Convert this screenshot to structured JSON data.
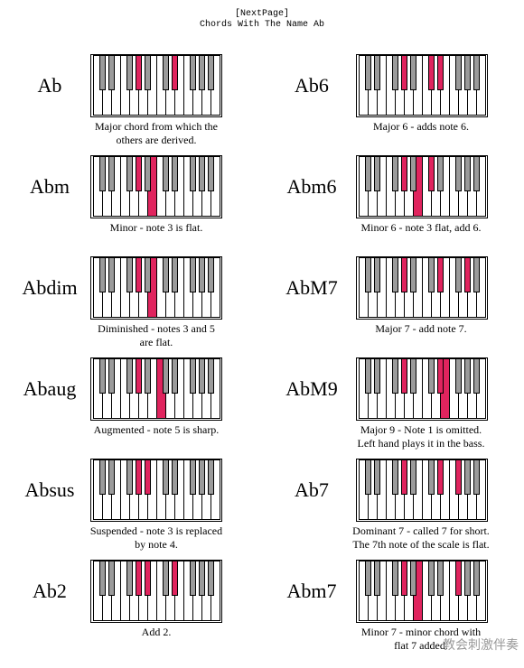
{
  "header": {
    "nextpage_label": "[NextPage]",
    "title": "Chords With The Name Ab"
  },
  "colors": {
    "highlight": "#e0245e",
    "black_key": "#9b9b9b",
    "white_key": "#ffffff",
    "outline": "#000000"
  },
  "keyboard": {
    "white_keys": 14,
    "black_keys_after_white_index": [
      0,
      1,
      3,
      4,
      5,
      7,
      8,
      10,
      11,
      12
    ]
  },
  "chords": [
    {
      "name": "Ab",
      "description": [
        "Major chord from which the",
        "others are derived."
      ],
      "highlight_white": [],
      "highlight_black": [
        3,
        6
      ]
    },
    {
      "name": "Ab6",
      "description": [
        "Major 6 - adds note 6."
      ],
      "highlight_white": [],
      "highlight_black": [
        3,
        5,
        6
      ]
    },
    {
      "name": "Abm",
      "description": [
        "Minor - note 3 is flat."
      ],
      "highlight_white": [
        6
      ],
      "highlight_black": [
        3
      ]
    },
    {
      "name": "Abm6",
      "description": [
        "Minor 6 - note 3 flat, add 6."
      ],
      "highlight_white": [
        6
      ],
      "highlight_black": [
        3,
        5
      ]
    },
    {
      "name": "Abdim",
      "description": [
        "Diminished - notes 3 and 5",
        "are flat."
      ],
      "highlight_white": [
        6
      ],
      "highlight_black": [
        3
      ]
    },
    {
      "name": "AbM7",
      "description": [
        "Major 7 - add note 7."
      ],
      "highlight_white": [],
      "highlight_black": [
        3,
        6,
        8
      ]
    },
    {
      "name": "Abaug",
      "description": [
        "Augmented - note 5 is sharp."
      ],
      "highlight_white": [
        7
      ],
      "highlight_black": [
        3
      ]
    },
    {
      "name": "AbM9",
      "description": [
        "Major 9 - Note 1 is omitted.",
        "Left hand plays it in the bass."
      ],
      "highlight_white": [
        9
      ],
      "highlight_black": [
        3,
        6
      ]
    },
    {
      "name": "Absus",
      "description": [
        "Suspended - note 3 is replaced",
        "by note 4."
      ],
      "highlight_white": [],
      "highlight_black": [
        3,
        4
      ]
    },
    {
      "name": "Ab7",
      "description": [
        "Dominant 7 - called 7 for short.",
        "The 7th note of the scale is flat."
      ],
      "highlight_white": [],
      "highlight_black": [
        3,
        6,
        7
      ]
    },
    {
      "name": "Ab2",
      "description": [
        "Add 2."
      ],
      "highlight_white": [],
      "highlight_black": [
        3,
        4,
        6
      ]
    },
    {
      "name": "Abm7",
      "description": [
        "Minor 7 - minor chord with",
        "flat 7 added."
      ],
      "highlight_white": [
        6
      ],
      "highlight_black": [
        3,
        7
      ]
    }
  ],
  "watermark": "教会刺激伴奏"
}
